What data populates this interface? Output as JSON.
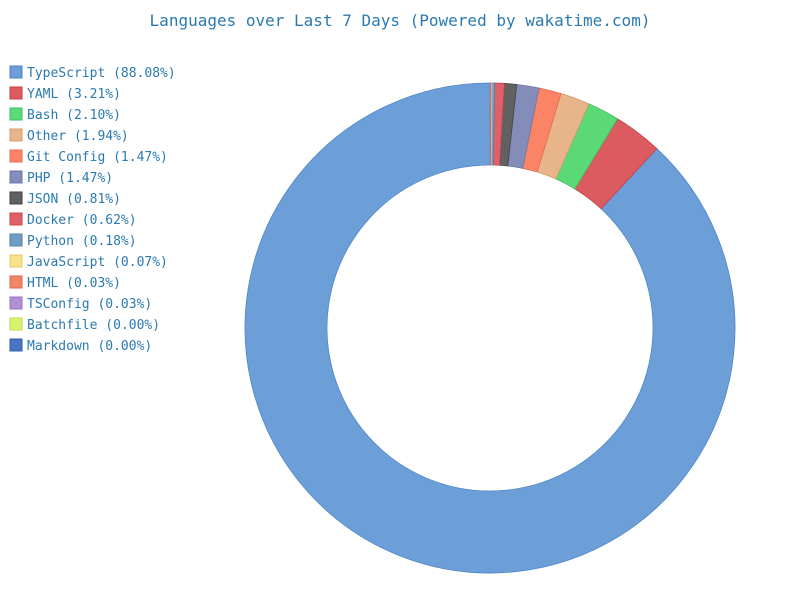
{
  "chart_data": {
    "type": "pie",
    "variant": "donut",
    "title": "Languages over Last 7 Days (Powered by wakatime.com)",
    "legend_position": "top-left",
    "slices": [
      {
        "label": "TypeScript",
        "legend_text": "TypeScript (88.08%)",
        "value": 88.08,
        "color": "#6c9fd8",
        "stroke": "#4f86c6"
      },
      {
        "label": "YAML",
        "legend_text": "YAML (3.21%)",
        "value": 3.21,
        "color": "#db5b61",
        "stroke": "#c4434a"
      },
      {
        "label": "Bash",
        "legend_text": "Bash (2.10%)",
        "value": 2.1,
        "color": "#5bd977",
        "stroke": "#3fbf5c"
      },
      {
        "label": "Other",
        "legend_text": "Other (1.94%)",
        "value": 1.94,
        "color": "#e8b48a",
        "stroke": "#d49a6c"
      },
      {
        "label": "Git Config",
        "legend_text": "Git Config (1.47%)",
        "value": 1.47,
        "color": "#fb8467",
        "stroke": "#e46a4c"
      },
      {
        "label": "PHP",
        "legend_text": "PHP (1.47%)",
        "value": 1.47,
        "color": "#848dba",
        "stroke": "#6b74a3"
      },
      {
        "label": "JSON",
        "legend_text": "JSON (0.81%)",
        "value": 0.81,
        "color": "#616161",
        "stroke": "#444444"
      },
      {
        "label": "Docker",
        "legend_text": "Docker (0.62%)",
        "value": 0.62,
        "color": "#e0606a",
        "stroke": "#c8474f"
      },
      {
        "label": "Python",
        "legend_text": "Python (0.18%)",
        "value": 0.18,
        "color": "#6f9cc3",
        "stroke": "#5583ab"
      },
      {
        "label": "JavaScript",
        "legend_text": "JavaScript (0.07%)",
        "value": 0.07,
        "color": "#f6e38a",
        "stroke": "#e0c968"
      },
      {
        "label": "HTML",
        "legend_text": "HTML (0.03%)",
        "value": 0.03,
        "color": "#f18565",
        "stroke": "#d86c4c"
      },
      {
        "label": "TSConfig",
        "legend_text": "TSConfig (0.03%)",
        "value": 0.03,
        "color": "#b38fd6",
        "stroke": "#9a75bf"
      },
      {
        "label": "Batchfile",
        "legend_text": "Batchfile (0.00%)",
        "value": 0.0,
        "color": "#d8f36c",
        "stroke": "#bdd852"
      },
      {
        "label": "Markdown",
        "legend_text": "Markdown (0.00%)",
        "value": 0.0,
        "color": "#4a74c4",
        "stroke": "#335cab"
      }
    ]
  }
}
